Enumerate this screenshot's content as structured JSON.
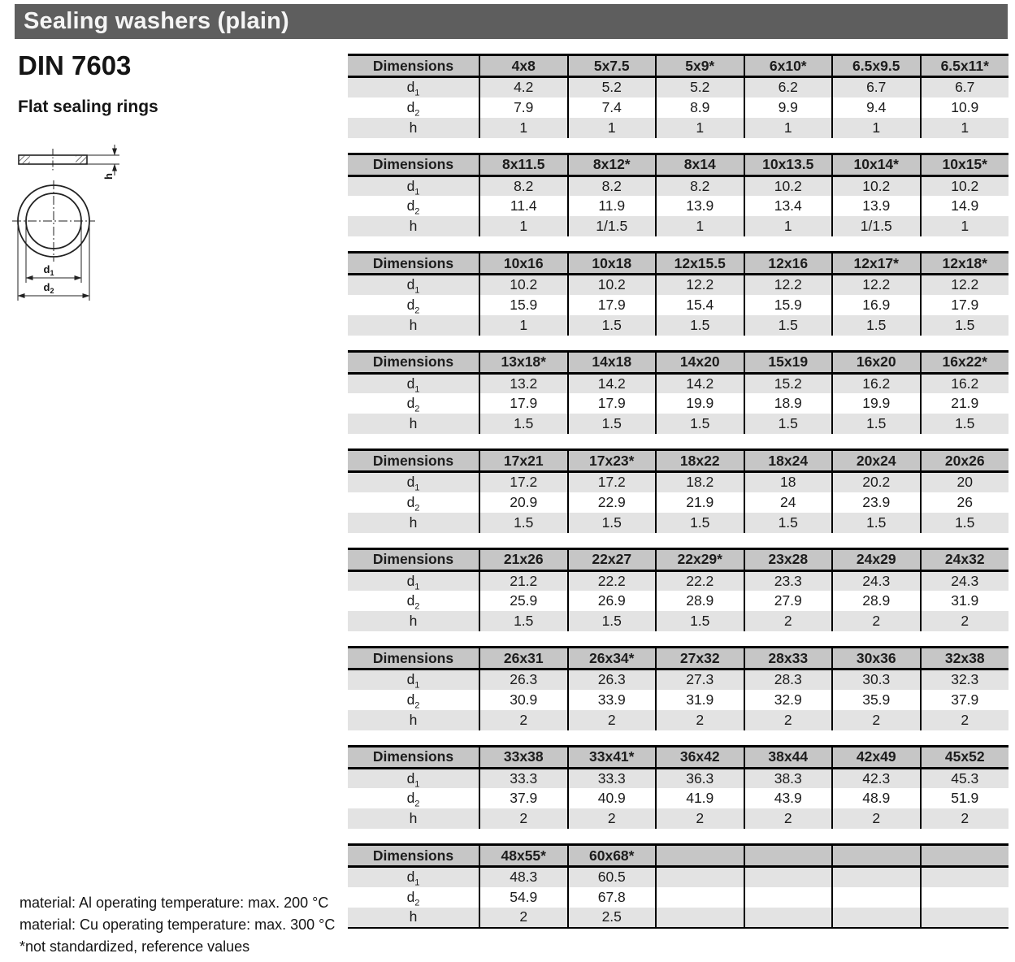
{
  "title_bar": {
    "title": "Sealing washers (plain)"
  },
  "page": {
    "standard": "DIN 7603",
    "subtitle": "Flat sealing rings"
  },
  "drawing": {
    "labels": {
      "d1_base": "d",
      "d1_sub": "1",
      "d2_base": "d",
      "d2_sub": "2",
      "h": "h"
    }
  },
  "notes": [
    "material: Al operating temperature: max. 200 °C",
    "material: Cu operating temperature: max. 300 °C",
    "*not standardized, reference values"
  ],
  "table_template": {
    "header_label": "Dimensions",
    "row_labels": [
      {
        "key": "d1",
        "base": "d",
        "sub": "1"
      },
      {
        "key": "d2",
        "base": "d",
        "sub": "2"
      },
      {
        "key": "h",
        "base": "h",
        "sub": ""
      }
    ]
  },
  "tables": [
    {
      "columns": [
        "4x8",
        "5x7.5",
        "5x9*",
        "6x10*",
        "6.5x9.5",
        "6.5x11*"
      ],
      "d1": [
        "4.2",
        "5.2",
        "5.2",
        "6.2",
        "6.7",
        "6.7"
      ],
      "d2": [
        "7.9",
        "7.4",
        "8.9",
        "9.9",
        "9.4",
        "10.9"
      ],
      "h": [
        "1",
        "1",
        "1",
        "1",
        "1",
        "1"
      ]
    },
    {
      "columns": [
        "8x11.5",
        "8x12*",
        "8x14",
        "10x13.5",
        "10x14*",
        "10x15*"
      ],
      "d1": [
        "8.2",
        "8.2",
        "8.2",
        "10.2",
        "10.2",
        "10.2"
      ],
      "d2": [
        "11.4",
        "11.9",
        "13.9",
        "13.4",
        "13.9",
        "14.9"
      ],
      "h": [
        "1",
        "1/1.5",
        "1",
        "1",
        "1/1.5",
        "1"
      ]
    },
    {
      "columns": [
        "10x16",
        "10x18",
        "12x15.5",
        "12x16",
        "12x17*",
        "12x18*"
      ],
      "d1": [
        "10.2",
        "10.2",
        "12.2",
        "12.2",
        "12.2",
        "12.2"
      ],
      "d2": [
        "15.9",
        "17.9",
        "15.4",
        "15.9",
        "16.9",
        "17.9"
      ],
      "h": [
        "1",
        "1.5",
        "1.5",
        "1.5",
        "1.5",
        "1.5"
      ]
    },
    {
      "columns": [
        "13x18*",
        "14x18",
        "14x20",
        "15x19",
        "16x20",
        "16x22*"
      ],
      "d1": [
        "13.2",
        "14.2",
        "14.2",
        "15.2",
        "16.2",
        "16.2"
      ],
      "d2": [
        "17.9",
        "17.9",
        "19.9",
        "18.9",
        "19.9",
        "21.9"
      ],
      "h": [
        "1.5",
        "1.5",
        "1.5",
        "1.5",
        "1.5",
        "1.5"
      ]
    },
    {
      "columns": [
        "17x21",
        "17x23*",
        "18x22",
        "18x24",
        "20x24",
        "20x26"
      ],
      "d1": [
        "17.2",
        "17.2",
        "18.2",
        "18",
        "20.2",
        "20"
      ],
      "d2": [
        "20.9",
        "22.9",
        "21.9",
        "24",
        "23.9",
        "26"
      ],
      "h": [
        "1.5",
        "1.5",
        "1.5",
        "1.5",
        "1.5",
        "1.5"
      ]
    },
    {
      "columns": [
        "21x26",
        "22x27",
        "22x29*",
        "23x28",
        "24x29",
        "24x32"
      ],
      "d1": [
        "21.2",
        "22.2",
        "22.2",
        "23.3",
        "24.3",
        "24.3"
      ],
      "d2": [
        "25.9",
        "26.9",
        "28.9",
        "27.9",
        "28.9",
        "31.9"
      ],
      "h": [
        "1.5",
        "1.5",
        "1.5",
        "2",
        "2",
        "2"
      ]
    },
    {
      "columns": [
        "26x31",
        "26x34*",
        "27x32",
        "28x33",
        "30x36",
        "32x38"
      ],
      "d1": [
        "26.3",
        "26.3",
        "27.3",
        "28.3",
        "30.3",
        "32.3"
      ],
      "d2": [
        "30.9",
        "33.9",
        "31.9",
        "32.9",
        "35.9",
        "37.9"
      ],
      "h": [
        "2",
        "2",
        "2",
        "2",
        "2",
        "2"
      ]
    },
    {
      "columns": [
        "33x38",
        "33x41*",
        "36x42",
        "38x44",
        "42x49",
        "45x52"
      ],
      "d1": [
        "33.3",
        "33.3",
        "36.3",
        "38.3",
        "42.3",
        "45.3"
      ],
      "d2": [
        "37.9",
        "40.9",
        "41.9",
        "43.9",
        "48.9",
        "51.9"
      ],
      "h": [
        "2",
        "2",
        "2",
        "2",
        "2",
        "2"
      ]
    },
    {
      "columns": [
        "48x55*",
        "60x68*",
        "",
        "",
        "",
        ""
      ],
      "d1": [
        "48.3",
        "60.5",
        "",
        "",
        "",
        ""
      ],
      "d2": [
        "54.9",
        "67.8",
        "",
        "",
        "",
        ""
      ],
      "h": [
        "2",
        "2.5",
        "",
        "",
        "",
        ""
      ],
      "bottom_border": true
    }
  ],
  "colors": {
    "title_bar_bg": "#5e5e5e",
    "title_bar_text": "#f5f5f5",
    "table_header_bg": "#c6c6c6",
    "row_shaded_bg": "#e3e3e3",
    "row_plain_bg": "#ffffff",
    "border": "#000000",
    "text": "#1c1c1c"
  }
}
